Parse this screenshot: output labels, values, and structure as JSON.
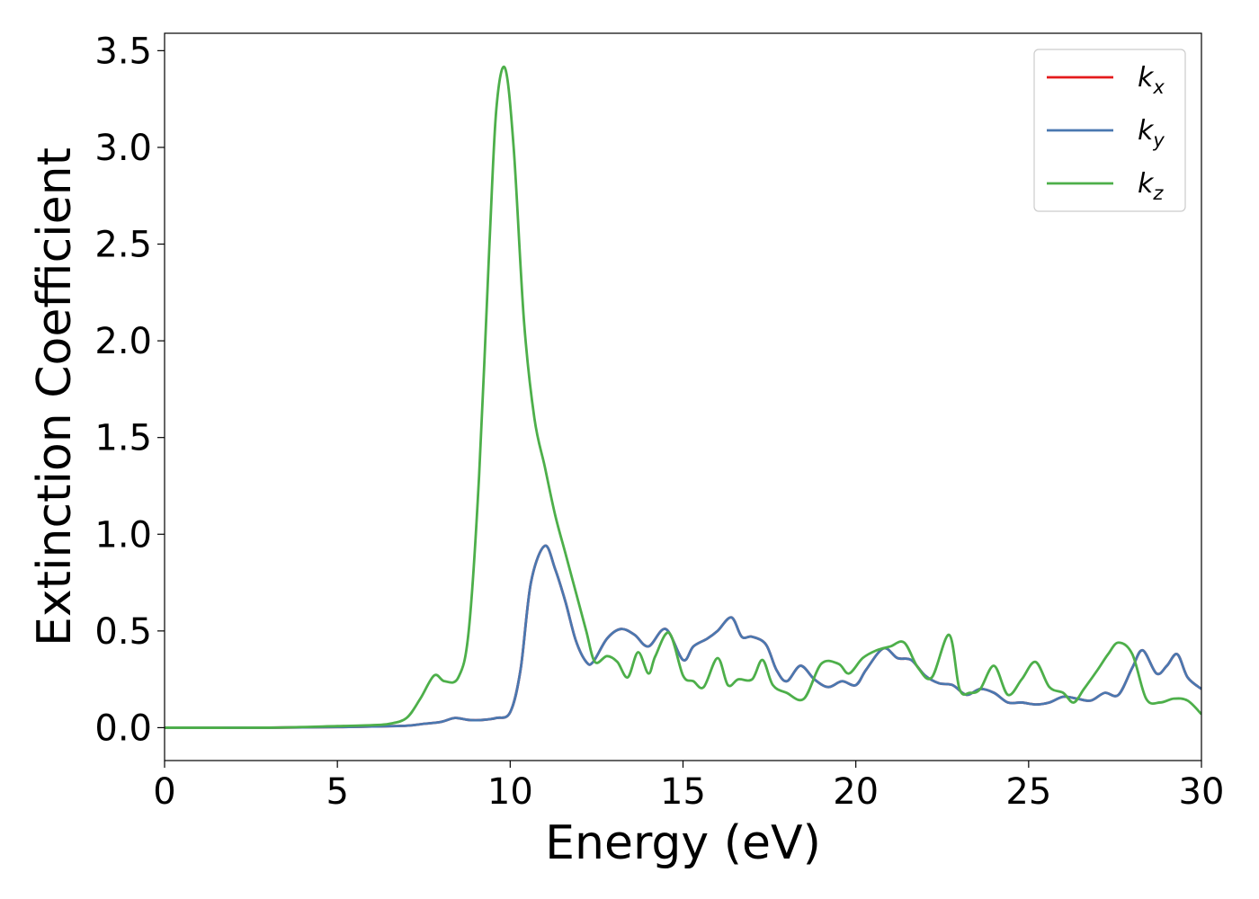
{
  "chart_data": {
    "type": "line",
    "title": "",
    "xlabel": "Energy (eV)",
    "ylabel": "Extinction Coefficient",
    "xlim": [
      0,
      30
    ],
    "ylim": [
      -0.17,
      3.59
    ],
    "xticks": [
      0,
      5,
      10,
      15,
      20,
      25,
      30
    ],
    "yticks": [
      0.0,
      0.5,
      1.0,
      1.5,
      2.0,
      2.5,
      3.0,
      3.5
    ],
    "xtick_labels": [
      "0",
      "5",
      "10",
      "15",
      "20",
      "25",
      "30"
    ],
    "ytick_labels": [
      "0.0",
      "0.5",
      "1.0",
      "1.5",
      "2.0",
      "2.5",
      "3.0",
      "3.5"
    ],
    "grid": false,
    "legend": {
      "position": "top-right"
    },
    "series": [
      {
        "name": "k",
        "subscript": "x",
        "color": "#e41a1c",
        "x": [
          0,
          3,
          5,
          6,
          7,
          7.5,
          8,
          8.4,
          8.8,
          9.2,
          9.6,
          10,
          10.3,
          10.6,
          11,
          11.3,
          11.6,
          11.9,
          12.2,
          12.4,
          12.8,
          13.2,
          13.6,
          14,
          14.5,
          15,
          15.3,
          15.7,
          16,
          16.4,
          16.7,
          17,
          17.4,
          17.7,
          18,
          18.4,
          18.8,
          19.2,
          19.6,
          20,
          20.3,
          20.8,
          21.2,
          21.6,
          22,
          22.4,
          22.8,
          23.2,
          23.6,
          24,
          24.4,
          24.8,
          25.2,
          25.6,
          26,
          26.4,
          26.8,
          27.2,
          27.6,
          28,
          28.3,
          28.7,
          29,
          29.3,
          29.6,
          30
        ],
        "y": [
          0.0,
          0.0,
          0.003,
          0.006,
          0.01,
          0.02,
          0.03,
          0.05,
          0.04,
          0.04,
          0.05,
          0.08,
          0.3,
          0.75,
          0.94,
          0.82,
          0.65,
          0.45,
          0.34,
          0.34,
          0.46,
          0.51,
          0.48,
          0.42,
          0.51,
          0.35,
          0.42,
          0.46,
          0.5,
          0.57,
          0.47,
          0.47,
          0.43,
          0.3,
          0.24,
          0.32,
          0.25,
          0.21,
          0.24,
          0.22,
          0.3,
          0.41,
          0.36,
          0.35,
          0.27,
          0.23,
          0.22,
          0.17,
          0.2,
          0.18,
          0.13,
          0.13,
          0.12,
          0.13,
          0.16,
          0.15,
          0.14,
          0.18,
          0.17,
          0.31,
          0.4,
          0.28,
          0.32,
          0.38,
          0.26,
          0.2
        ]
      },
      {
        "name": "k",
        "subscript": "y",
        "color": "#4a78b0",
        "x": [
          0,
          3,
          5,
          6,
          7,
          7.5,
          8,
          8.4,
          8.8,
          9.2,
          9.6,
          10,
          10.3,
          10.6,
          11,
          11.3,
          11.6,
          11.9,
          12.2,
          12.4,
          12.8,
          13.2,
          13.6,
          14,
          14.5,
          15,
          15.3,
          15.7,
          16,
          16.4,
          16.7,
          17,
          17.4,
          17.7,
          18,
          18.4,
          18.8,
          19.2,
          19.6,
          20,
          20.3,
          20.8,
          21.2,
          21.6,
          22,
          22.4,
          22.8,
          23.2,
          23.6,
          24,
          24.4,
          24.8,
          25.2,
          25.6,
          26,
          26.4,
          26.8,
          27.2,
          27.6,
          28,
          28.3,
          28.7,
          29,
          29.3,
          29.6,
          30
        ],
        "y": [
          0.0,
          0.0,
          0.003,
          0.006,
          0.01,
          0.02,
          0.03,
          0.05,
          0.04,
          0.04,
          0.05,
          0.08,
          0.3,
          0.75,
          0.94,
          0.82,
          0.65,
          0.45,
          0.34,
          0.34,
          0.46,
          0.51,
          0.48,
          0.42,
          0.51,
          0.35,
          0.42,
          0.46,
          0.5,
          0.57,
          0.47,
          0.47,
          0.43,
          0.3,
          0.24,
          0.32,
          0.25,
          0.21,
          0.24,
          0.22,
          0.3,
          0.41,
          0.36,
          0.35,
          0.27,
          0.23,
          0.22,
          0.17,
          0.2,
          0.18,
          0.13,
          0.13,
          0.12,
          0.13,
          0.16,
          0.15,
          0.14,
          0.18,
          0.17,
          0.31,
          0.4,
          0.28,
          0.32,
          0.38,
          0.26,
          0.2
        ]
      },
      {
        "name": "k",
        "subscript": "z",
        "color": "#4daf4a",
        "x": [
          0,
          3,
          5,
          6,
          6.5,
          7,
          7.4,
          7.8,
          8.1,
          8.5,
          8.8,
          9.1,
          9.4,
          9.6,
          9.85,
          10.1,
          10.4,
          10.7,
          11,
          11.3,
          11.6,
          11.9,
          12.2,
          12.45,
          12.8,
          13.1,
          13.4,
          13.7,
          14,
          14.2,
          14.6,
          15,
          15.3,
          15.6,
          16,
          16.3,
          16.6,
          17,
          17.3,
          17.6,
          18,
          18.5,
          19,
          19.5,
          19.8,
          20.2,
          20.6,
          21,
          21.4,
          21.8,
          22.2,
          22.7,
          23,
          23.3,
          23.6,
          24,
          24.4,
          24.8,
          25.2,
          25.6,
          26,
          26.3,
          26.6,
          27,
          27.3,
          27.6,
          28,
          28.4,
          28.8,
          29.2,
          29.6,
          30
        ],
        "y": [
          0.0,
          0.0,
          0.008,
          0.013,
          0.02,
          0.05,
          0.15,
          0.27,
          0.24,
          0.26,
          0.5,
          1.3,
          2.5,
          3.2,
          3.41,
          3.0,
          2.1,
          1.6,
          1.35,
          1.1,
          0.9,
          0.7,
          0.5,
          0.34,
          0.37,
          0.34,
          0.26,
          0.39,
          0.28,
          0.37,
          0.49,
          0.27,
          0.24,
          0.21,
          0.36,
          0.22,
          0.25,
          0.25,
          0.35,
          0.22,
          0.18,
          0.15,
          0.33,
          0.33,
          0.28,
          0.36,
          0.4,
          0.42,
          0.44,
          0.31,
          0.26,
          0.48,
          0.2,
          0.18,
          0.2,
          0.32,
          0.17,
          0.25,
          0.34,
          0.21,
          0.18,
          0.13,
          0.2,
          0.3,
          0.38,
          0.44,
          0.38,
          0.15,
          0.13,
          0.15,
          0.14,
          0.07
        ]
      }
    ]
  }
}
